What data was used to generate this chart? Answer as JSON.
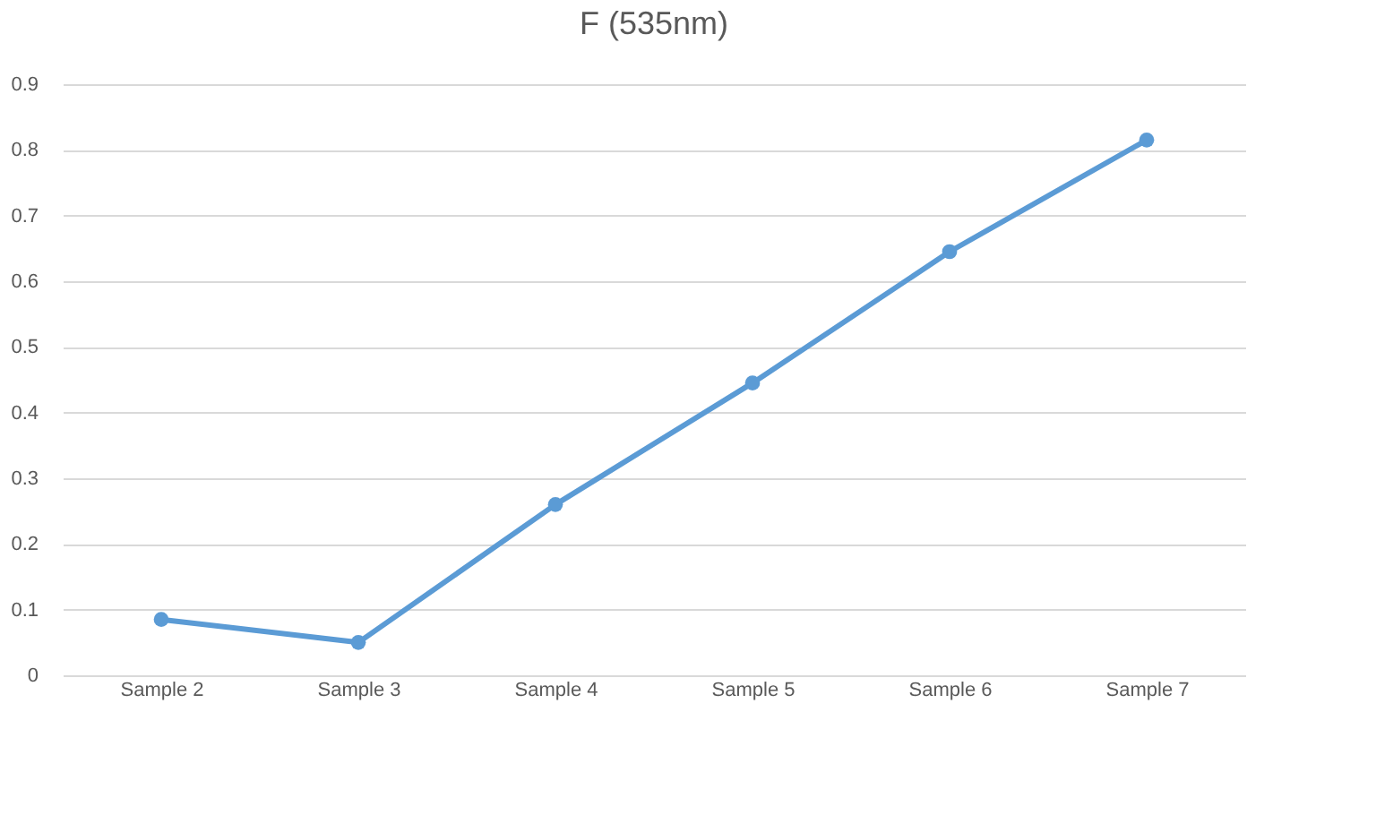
{
  "chart_data": {
    "type": "line",
    "title": "F (535nm)",
    "categories": [
      "Sample 2",
      "Sample 3",
      "Sample 4",
      "Sample 5",
      "Sample 6",
      "Sample 7"
    ],
    "series": [
      {
        "color": "#5b9bd5",
        "values": [
          0.085,
          0.05,
          0.26,
          0.445,
          0.645,
          0.815
        ]
      }
    ],
    "ylim": [
      0,
      0.9
    ],
    "yticks": [
      0,
      0.1,
      0.2,
      0.3,
      0.4,
      0.5,
      0.6,
      0.7,
      0.8,
      0.9
    ],
    "grid": "y",
    "marker": "circle",
    "line_style": "solid"
  }
}
